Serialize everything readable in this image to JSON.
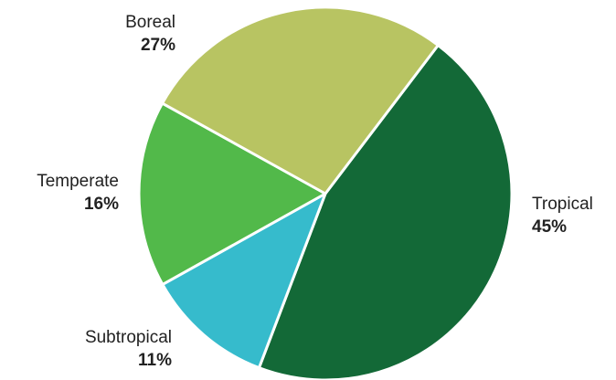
{
  "chart_data": {
    "type": "pie",
    "title": "",
    "slices": [
      {
        "label": "Tropical",
        "value": 45,
        "value_label": "45%",
        "color": "#136937"
      },
      {
        "label": "Subtropical",
        "value": 11,
        "value_label": "11%",
        "color": "#36bbcc"
      },
      {
        "label": "Temperate",
        "value": 16,
        "value_label": "16%",
        "color": "#52b94a"
      },
      {
        "label": "Boreal",
        "value": 27,
        "value_label": "27%",
        "color": "#b8c462"
      }
    ],
    "legend": "none",
    "labels_outside": true
  }
}
